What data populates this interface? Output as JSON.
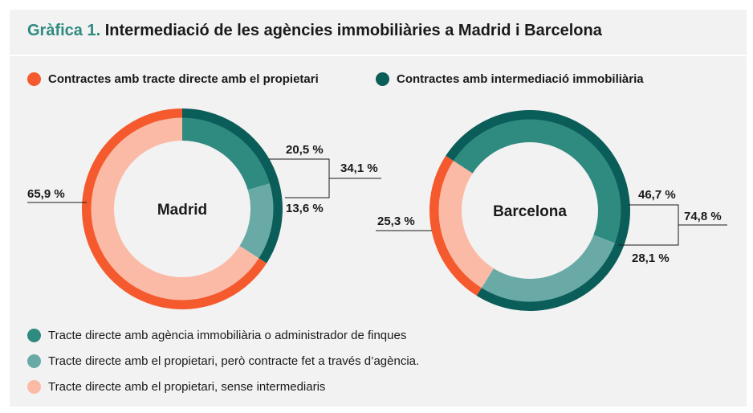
{
  "title": {
    "prefix": "Gràfica 1.",
    "text": "Intermediació de les agències immobiliàries a Madrid i Barcelona"
  },
  "colors": {
    "dark_teal": "#2f8a80",
    "light_teal": "#69aaa6",
    "light_salmon": "#fbbaa6",
    "orange": "#f45a2d",
    "outer_teal": "#0a5d58"
  },
  "legend_top": [
    {
      "label": "Contractes amb tracte directe amb el propietari",
      "color": "#f45a2d"
    },
    {
      "label": "Contractes amb intermediació immobiliària",
      "color": "#0a5d58"
    }
  ],
  "legend_bottom": [
    {
      "label": "Tracte directe amb agència immobiliària o administrador de finques",
      "color": "#2f8a80"
    },
    {
      "label": "Tracte directe amb el propietari, però contracte fet a través d’agència.",
      "color": "#69aaa6"
    },
    {
      "label": "Tracte directe amb el propietari, sense intermediaris",
      "color": "#fbbaa6"
    }
  ],
  "chart_data": [
    {
      "type": "pie",
      "name": "Madrid",
      "categories": [
        "Tracte directe amb agència immobiliària o administrador de finques",
        "Tracte directe amb el propietari, però contracte fet a través d’agència.",
        "Tracte directe amb el propietari, sense intermediaris"
      ],
      "values": [
        20.5,
        13.6,
        65.9
      ],
      "labels": [
        "20,5 %",
        "13,6 %",
        "65,9 %"
      ],
      "outer_ring": {
        "intermediation": 34.1,
        "direct": 65.9
      },
      "group_label": "34,1 %"
    },
    {
      "type": "pie",
      "name": "Barcelona",
      "categories": [
        "Tracte directe amb agència immobiliària o administrador de finques",
        "Tracte directe amb el propietari, però contracte fet a través d’agència.",
        "Tracte directe amb el propietari, sense intermediaris"
      ],
      "values": [
        46.7,
        28.1,
        25.3
      ],
      "labels": [
        "46,7 %",
        "28,1 %",
        "25,3 %"
      ],
      "outer_ring": {
        "intermediation": 74.8,
        "direct": 25.3
      },
      "group_label": "74,8 %"
    }
  ]
}
